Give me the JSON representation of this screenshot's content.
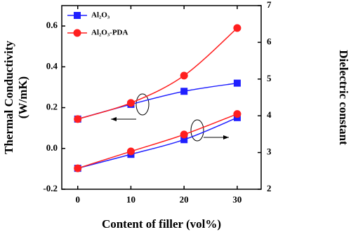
{
  "chart_data": {
    "type": "line",
    "xlabel": "Content of filler (vol%)",
    "ylabel": [
      "Thermal Conductivity",
      "(W/mK)"
    ],
    "y2label": "Dielectric constant",
    "x": [
      0,
      10,
      20,
      30
    ],
    "series": [
      {
        "name": "Al₂O₃",
        "color": "#1f1fff",
        "marker": "square",
        "values": [
          0.144,
          0.216,
          0.28,
          0.32
        ],
        "y2_values": [
          2.57,
          2.95,
          3.35,
          3.95
        ]
      },
      {
        "name": "Al₂O₃-PDA",
        "color": "#ff1f1f",
        "marker": "circle",
        "values": [
          0.144,
          0.223,
          0.357,
          0.59
        ],
        "y2_values": [
          2.57,
          3.03,
          3.49,
          4.05
        ]
      }
    ],
    "xlim": [
      -3,
      34.5
    ],
    "xticks": [
      0,
      10,
      20,
      30
    ],
    "ylim": [
      -0.2,
      0.7
    ],
    "yticks": [
      -0.2,
      {
        "value": 0,
        "label": "0.0"
      },
      0.2,
      0.4,
      0.6
    ],
    "y2lim": [
      2,
      7
    ],
    "y2ticks": [
      2,
      3,
      4,
      5,
      6,
      7
    ],
    "legend": "upper-left"
  }
}
